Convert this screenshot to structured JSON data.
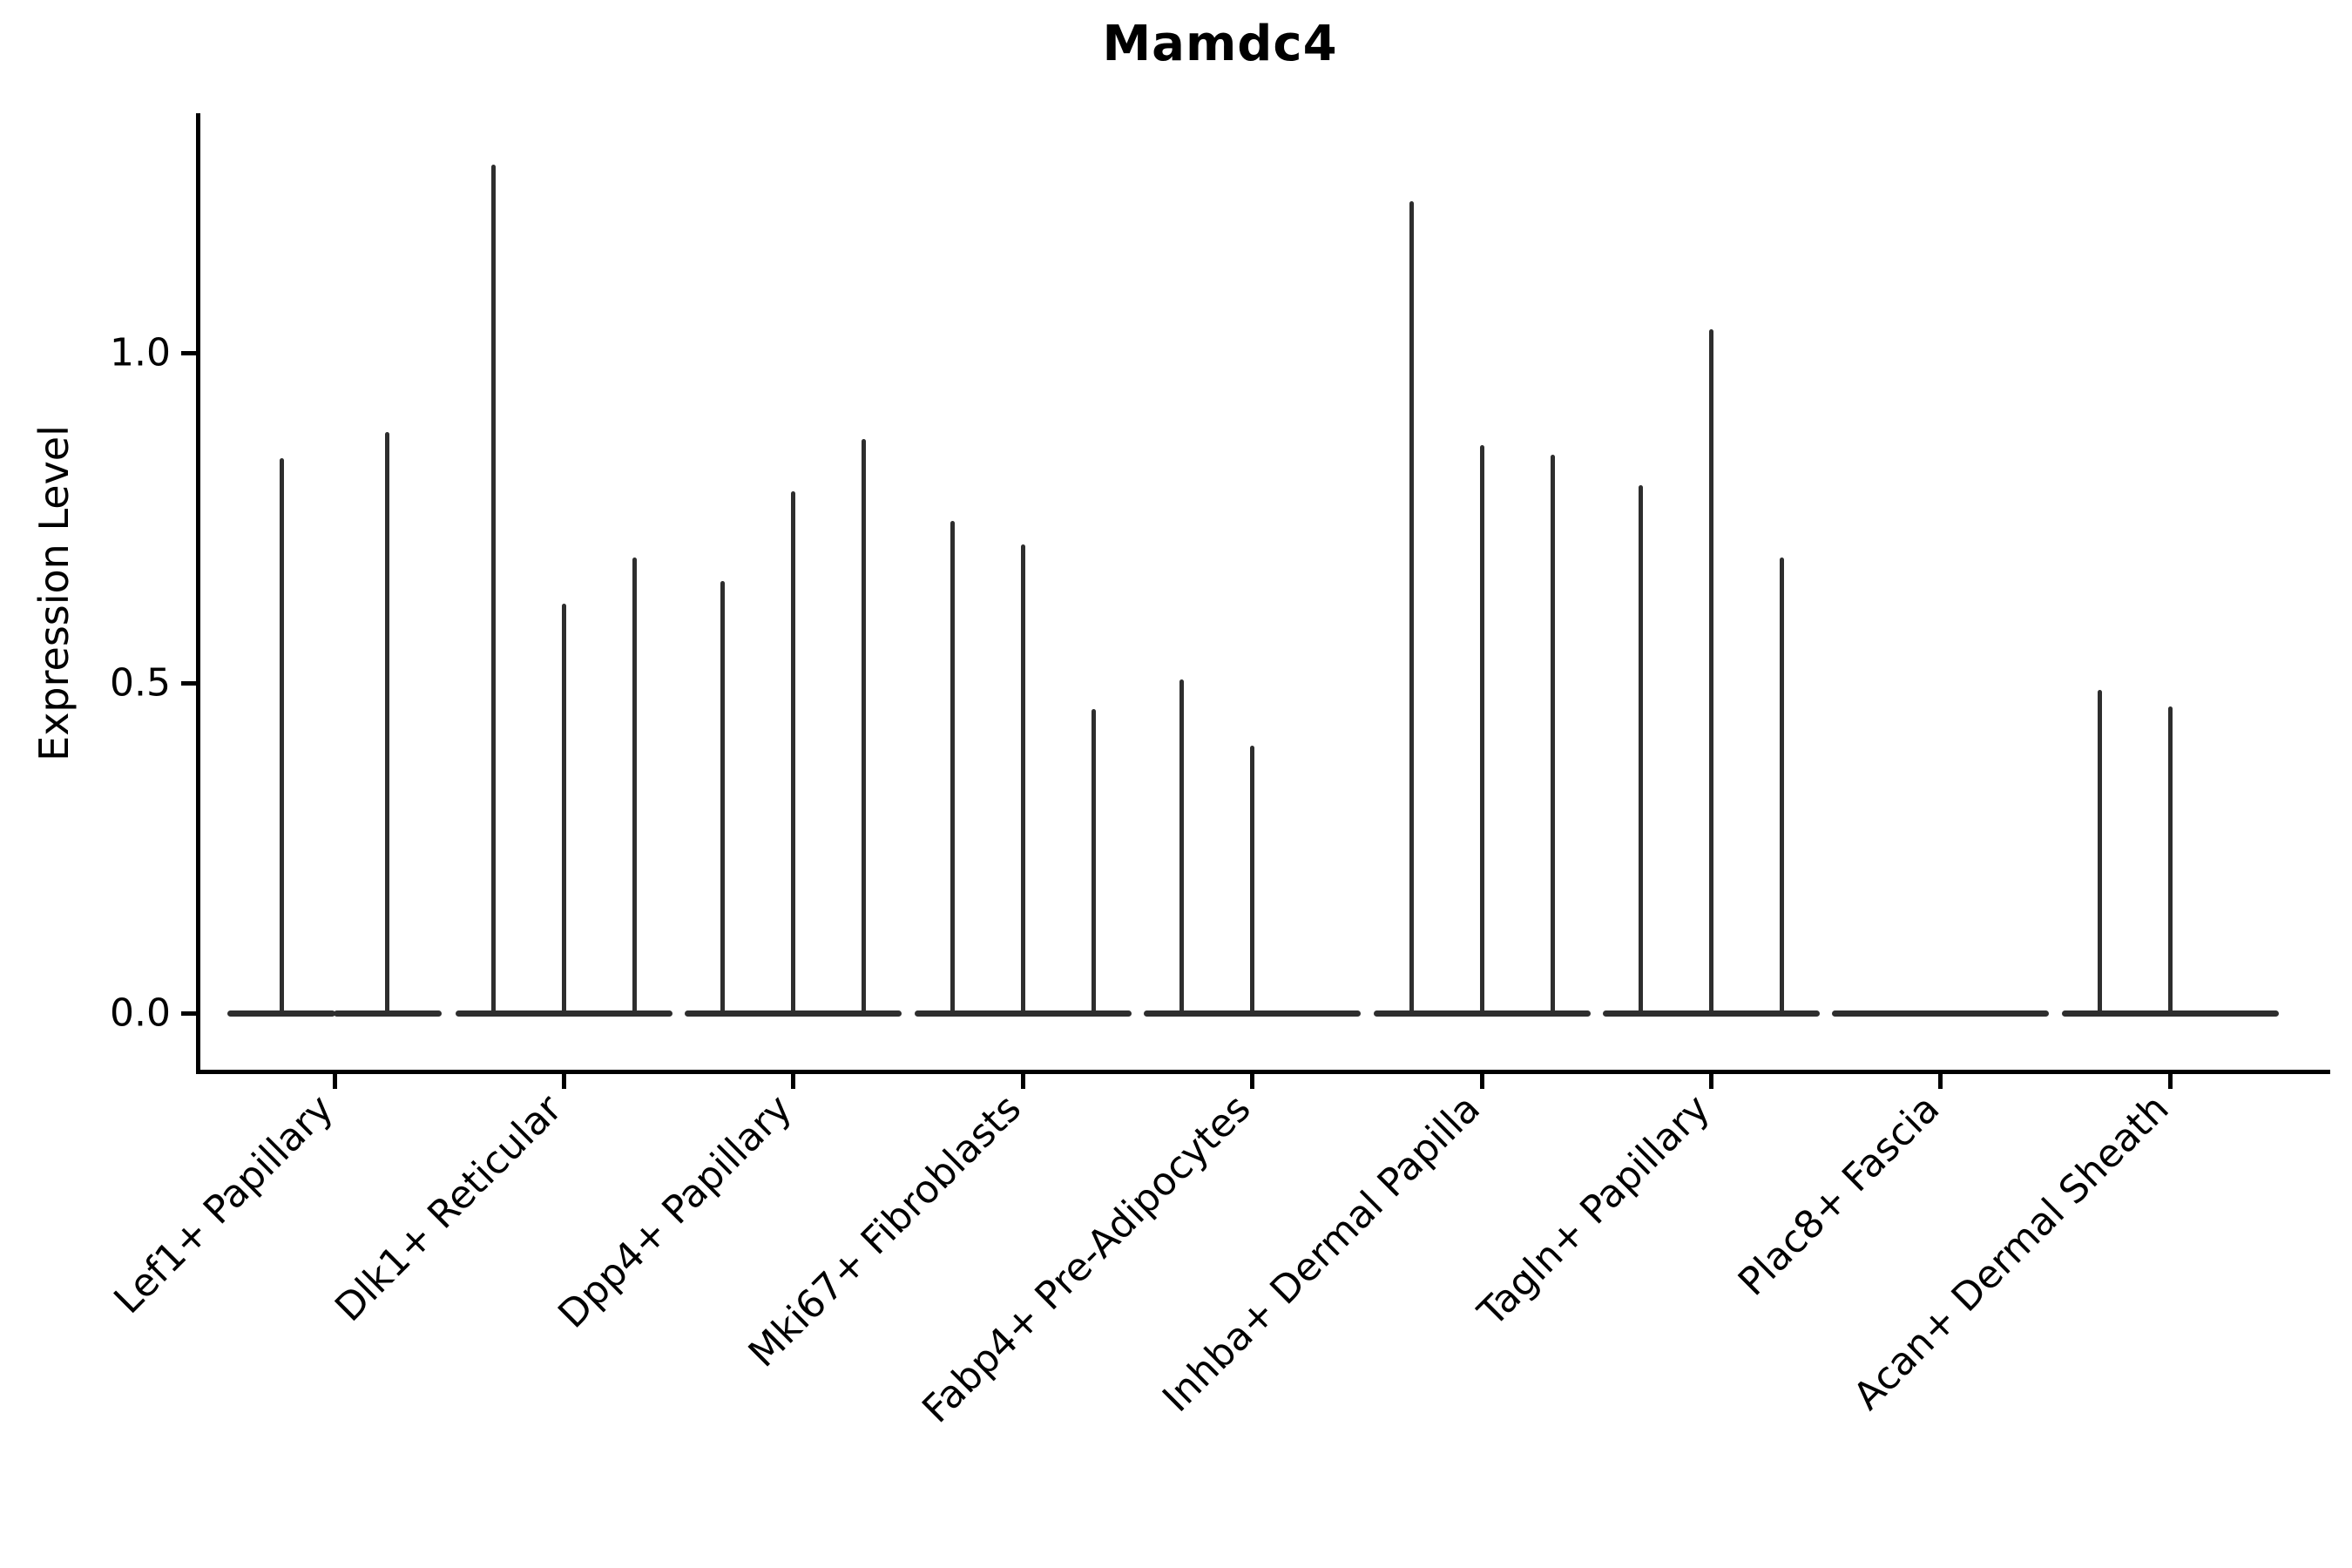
{
  "chart_data": {
    "type": "violin",
    "title": "Mamdc4",
    "ylabel": "Expression Level",
    "xlabel": "",
    "yticks": [
      "0.0",
      "0.5",
      "1.0"
    ],
    "ytick_values": [
      0.0,
      0.5,
      1.0
    ],
    "ylim": [
      -0.09,
      1.37
    ],
    "grid": false,
    "legend": "none",
    "colors": {
      "violin": "#2e2e2e",
      "axis": "#000000",
      "background": "#ffffff"
    },
    "categories": [
      "Lef1+ Papillary",
      "Dlk1+ Reticular",
      "Dpp4+ Papillary",
      "Mki67+ Fibroblasts",
      "Fabp4+ Pre-Adipocytes",
      "Inhba+ Dermal Papilla",
      "Tagln+ Papillary",
      "Plac8+ Fascia",
      "Acan+ Dermal Sheath"
    ],
    "groups": [
      {
        "label": "Lef1+ Papillary",
        "violin_peaks": [
          0.84,
          0.88
        ]
      },
      {
        "label": "Dlk1+ Reticular",
        "violin_peaks": [
          1.285,
          0.62,
          0.69
        ]
      },
      {
        "label": "Dpp4+ Papillary",
        "violin_peaks": [
          0.655,
          0.79,
          0.87
        ]
      },
      {
        "label": "Mki67+ Fibroblasts",
        "violin_peaks": [
          0.745,
          0.71,
          0.46
        ]
      },
      {
        "label": "Fabp4+ Pre-Adipocytes",
        "violin_peaks": [
          0.505,
          0.405,
          0.0
        ]
      },
      {
        "label": "Inhba+ Dermal Papilla",
        "violin_peaks": [
          1.23,
          0.86,
          0.845
        ]
      },
      {
        "label": "Tagln+ Papillary",
        "violin_peaks": [
          0.8,
          1.035,
          0.69
        ]
      },
      {
        "label": "Plac8+ Fascia",
        "violin_peaks": [
          0.0,
          0.0,
          0.0
        ]
      },
      {
        "label": "Acan+ Dermal Sheath",
        "violin_peaks": [
          0.49,
          0.465,
          0.0
        ]
      }
    ]
  }
}
